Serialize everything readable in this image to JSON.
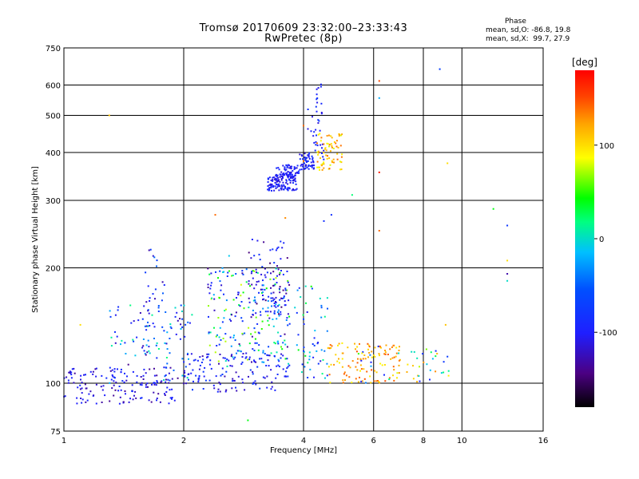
{
  "header": {
    "title_line1": "Tromsø 20170609 23:32:00–23:33:43",
    "title_line2": "RwPretec (8p)",
    "phase_label": "Phase",
    "stat_o": "mean, sd,O: -86.8, 19.8",
    "stat_x": "mean, sd,X:  99.7, 27.9"
  },
  "colorbar": {
    "unit_label": "[deg]",
    "ticks": [
      {
        "value": 100,
        "label": "100"
      },
      {
        "value": 0,
        "label": "0"
      },
      {
        "value": -100,
        "label": "-100"
      }
    ],
    "range": [
      -180,
      180
    ],
    "colors": [
      "#000000",
      "#4b0082",
      "#1f1fff",
      "#0040ff",
      "#00bfff",
      "#00ff80",
      "#00ff00",
      "#ffff00",
      "#ffa500",
      "#ff4500",
      "#ff0000"
    ]
  },
  "chart_data": {
    "type": "scatter",
    "xlabel": "Frequency [MHz]",
    "ylabel": "Stationary phase Virtual Height [km]",
    "x_scale": "log",
    "y_scale": "log",
    "xlim": [
      1,
      16
    ],
    "ylim": [
      75,
      750
    ],
    "grid": true,
    "x_ticks": [
      1,
      2,
      4,
      6,
      8,
      10,
      16
    ],
    "x_gridlines": [
      2,
      4,
      6,
      8,
      10
    ],
    "y_ticks": [
      75,
      100,
      200,
      300,
      400,
      500,
      600,
      750
    ],
    "y_gridlines": [
      100,
      200,
      300,
      400,
      500,
      600
    ],
    "clusters": [
      {
        "f": [
          1.0,
          1.9
        ],
        "h": [
          88,
          110
        ],
        "phase": [
          -140,
          -80
        ],
        "n": 150
      },
      {
        "f": [
          1.3,
          2.1
        ],
        "h": [
          100,
          160
        ],
        "phase": [
          -140,
          20
        ],
        "n": 110
      },
      {
        "f": [
          1.6,
          1.8
        ],
        "h": [
          130,
          230
        ],
        "phase": [
          -130,
          -40
        ],
        "n": 25
      },
      {
        "f": [
          2.0,
          3.7
        ],
        "h": [
          95,
          120
        ],
        "phase": [
          -130,
          -60
        ],
        "n": 130
      },
      {
        "f": [
          2.3,
          3.7
        ],
        "h": [
          110,
          200
        ],
        "phase": [
          -140,
          80
        ],
        "n": 230
      },
      {
        "f": [
          2.9,
          3.7
        ],
        "h": [
          150,
          240
        ],
        "phase": [
          -150,
          -60
        ],
        "n": 90
      },
      {
        "f": [
          3.25,
          3.85
        ],
        "h": [
          318,
          350
        ],
        "phase": [
          -120,
          -80
        ],
        "n": 120
      },
      {
        "f": [
          3.4,
          3.9
        ],
        "h": [
          345,
          372
        ],
        "phase": [
          -120,
          -80
        ],
        "n": 60
      },
      {
        "f": [
          3.9,
          4.25
        ],
        "h": [
          360,
          400
        ],
        "phase": [
          -120,
          -70
        ],
        "n": 55
      },
      {
        "f": [
          4.1,
          4.5
        ],
        "h": [
          380,
          520
        ],
        "phase": [
          -120,
          -70
        ],
        "n": 30
      },
      {
        "f": [
          4.3,
          4.45
        ],
        "h": [
          520,
          615
        ],
        "phase": [
          -110,
          -70
        ],
        "n": 10
      },
      {
        "f": [
          4.3,
          5.0
        ],
        "h": [
          360,
          450
        ],
        "phase": [
          80,
          140
        ],
        "n": 70
      },
      {
        "f": [
          3.8,
          4.6
        ],
        "h": [
          100,
          180
        ],
        "phase": [
          -120,
          60
        ],
        "n": 55
      },
      {
        "f": [
          4.6,
          7.0
        ],
        "h": [
          100,
          128
        ],
        "phase": [
          90,
          150
        ],
        "n": 110
      },
      {
        "f": [
          5.5,
          9.3
        ],
        "h": [
          100,
          125
        ],
        "phase": [
          -100,
          160
        ],
        "n": 50
      }
    ],
    "singles": [
      {
        "x": 1.3,
        "y": 500,
        "phase": 110
      },
      {
        "x": 1.1,
        "y": 142,
        "phase": 100
      },
      {
        "x": 2.4,
        "y": 275,
        "phase": 140
      },
      {
        "x": 4.0,
        "y": 470,
        "phase": 140
      },
      {
        "x": 4.0,
        "y": 380,
        "phase": 140
      },
      {
        "x": 4.7,
        "y": 275,
        "phase": -80
      },
      {
        "x": 4.5,
        "y": 265,
        "phase": -80
      },
      {
        "x": 5.3,
        "y": 310,
        "phase": 20
      },
      {
        "x": 6.2,
        "y": 615,
        "phase": 150
      },
      {
        "x": 6.2,
        "y": 555,
        "phase": -20
      },
      {
        "x": 6.2,
        "y": 355,
        "phase": 170
      },
      {
        "x": 6.2,
        "y": 250,
        "phase": 140
      },
      {
        "x": 8.8,
        "y": 660,
        "phase": -60
      },
      {
        "x": 9.2,
        "y": 375,
        "phase": 100
      },
      {
        "x": 9.1,
        "y": 142,
        "phase": 110
      },
      {
        "x": 12.0,
        "y": 285,
        "phase": 40
      },
      {
        "x": 13.0,
        "y": 258,
        "phase": -70
      },
      {
        "x": 13.0,
        "y": 209,
        "phase": 100
      },
      {
        "x": 13.0,
        "y": 193,
        "phase": -130
      },
      {
        "x": 13.0,
        "y": 185,
        "phase": 0
      },
      {
        "x": 2.9,
        "y": 80,
        "phase": 40
      },
      {
        "x": 2.6,
        "y": 215,
        "phase": -10
      },
      {
        "x": 3.6,
        "y": 270,
        "phase": 130
      }
    ]
  }
}
